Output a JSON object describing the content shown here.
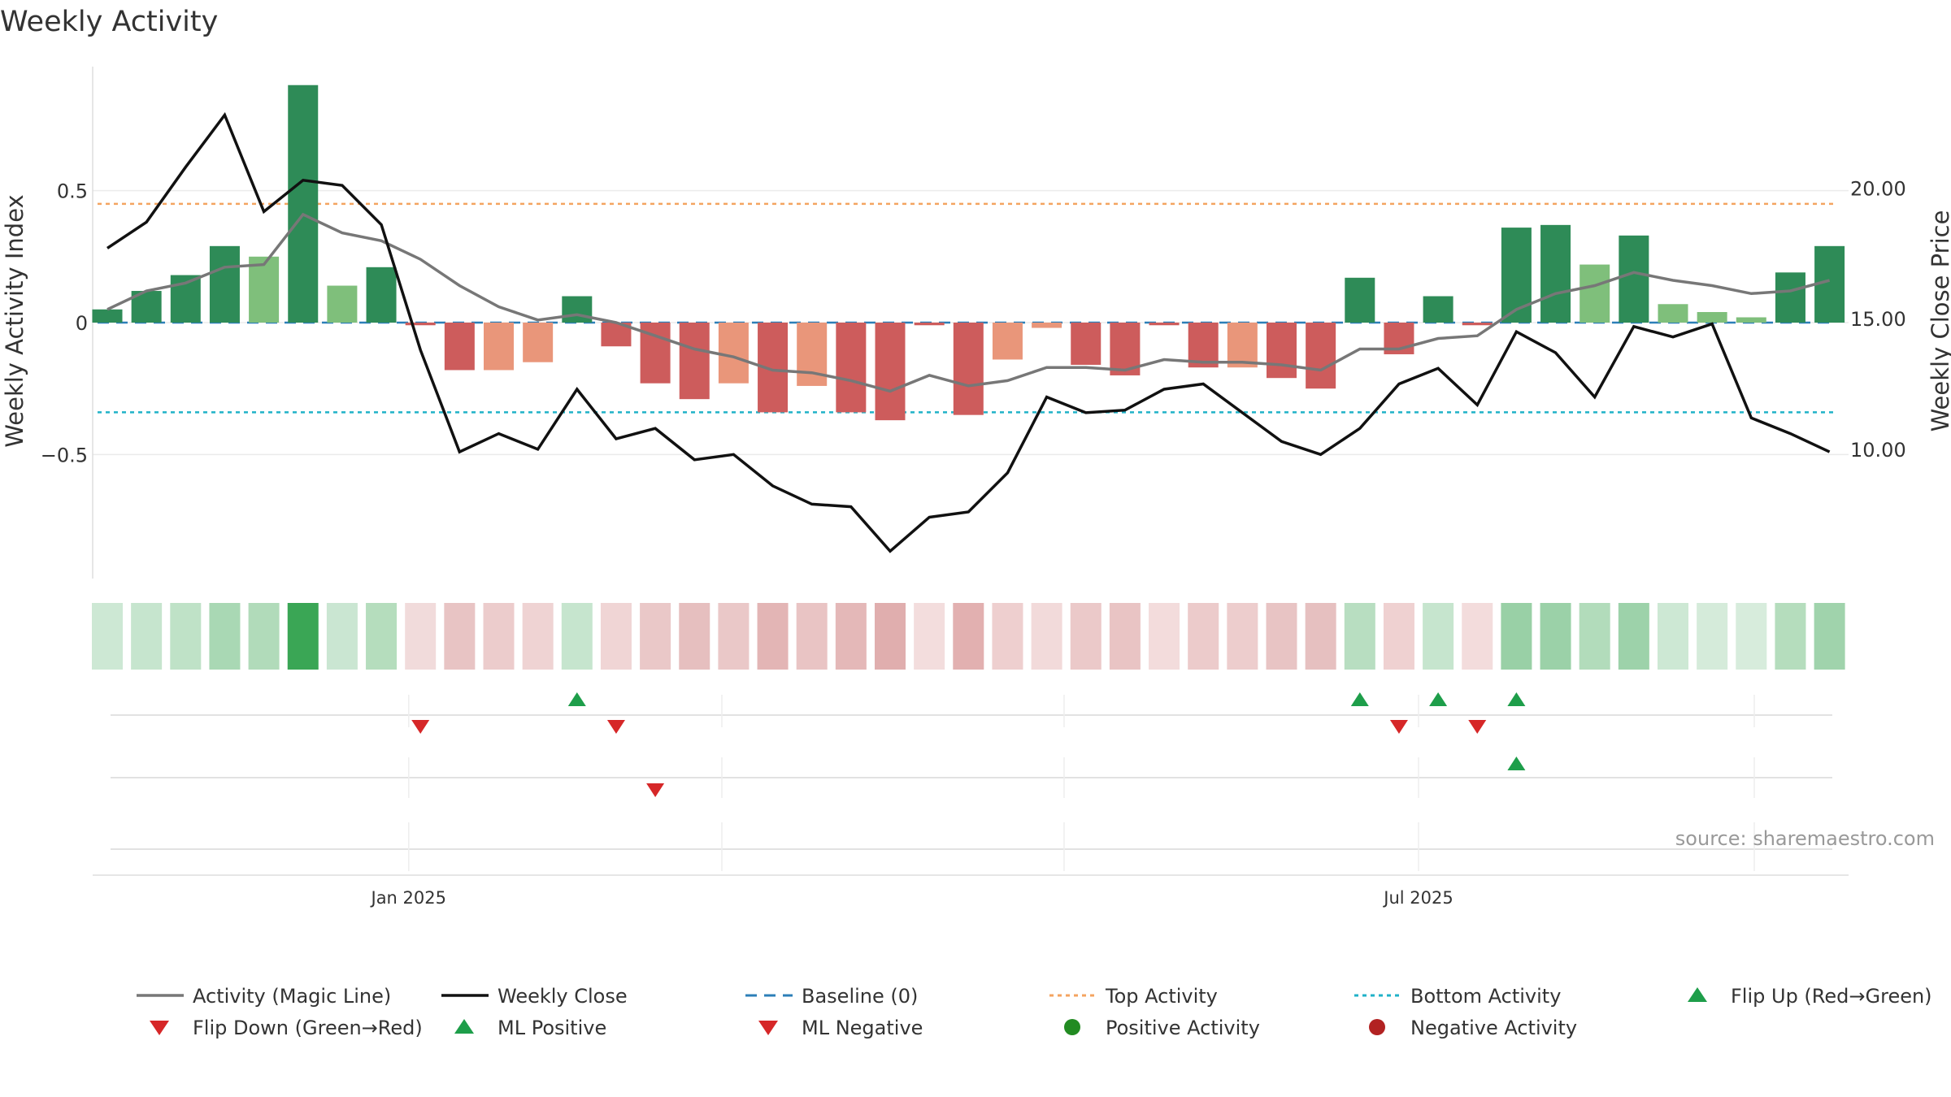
{
  "chart_data": {
    "type": "bar",
    "title": "Weekly Activity",
    "ylabel_left": "Weekly Activity Index",
    "ylabel_right": "Weekly Close Price",
    "y_left_ticks": [
      0.5,
      0,
      -0.5
    ],
    "y_left_tick_labels": [
      "0.5",
      "0",
      "−0.5"
    ],
    "y_left_range": [
      -0.97,
      0.97
    ],
    "y_right_ticks": [
      20,
      15,
      10
    ],
    "y_right_tick_labels": [
      "20.00",
      "15.00",
      "10.00"
    ],
    "y_right_range": [
      5.05,
      24.65
    ],
    "date_ticks": [
      {
        "label": "Jan 2025",
        "week": 7.7
      },
      {
        "label": "Jul 2025",
        "week": 33.5
      }
    ],
    "weeks": 45,
    "activity_values": [
      0.05,
      0.12,
      0.18,
      0.29,
      0.25,
      0.9,
      0.14,
      0.21,
      -0.01,
      -0.18,
      -0.18,
      -0.15,
      0.1,
      -0.09,
      -0.23,
      -0.29,
      -0.23,
      -0.34,
      -0.24,
      -0.34,
      -0.37,
      -0.01,
      -0.35,
      -0.14,
      -0.02,
      -0.16,
      -0.2,
      -0.01,
      -0.17,
      -0.17,
      -0.21,
      -0.25,
      0.17,
      -0.12,
      0.1,
      -0.01,
      0.36,
      0.37,
      0.22,
      0.33,
      0.07,
      0.04,
      0.02,
      0.19,
      0.29
    ],
    "bar_colors": [
      "#2e8b57",
      "#2e8b57",
      "#2e8b57",
      "#2e8b57",
      "#7fbf7b",
      "#2e8b57",
      "#7fbf7b",
      "#2e8b57",
      "#cd5c5c",
      "#cd5c5c",
      "#e9967a",
      "#e9967a",
      "#2e8b57",
      "#cd5c5c",
      "#cd5c5c",
      "#cd5c5c",
      "#e9967a",
      "#cd5c5c",
      "#e9967a",
      "#cd5c5c",
      "#cd5c5c",
      "#cd5c5c",
      "#cd5c5c",
      "#e9967a",
      "#e9967a",
      "#cd5c5c",
      "#cd5c5c",
      "#cd5c5c",
      "#cd5c5c",
      "#e9967a",
      "#cd5c5c",
      "#cd5c5c",
      "#2e8b57",
      "#cd5c5c",
      "#2e8b57",
      "#cd5c5c",
      "#2e8b57",
      "#2e8b57",
      "#7fbf7b",
      "#2e8b57",
      "#7fbf7b",
      "#7fbf7b",
      "#7fbf7b",
      "#2e8b57",
      "#2e8b57"
    ],
    "magic_line": [
      0.05,
      0.12,
      0.15,
      0.21,
      0.22,
      0.41,
      0.34,
      0.31,
      0.24,
      0.14,
      0.06,
      0.01,
      0.03,
      0.0,
      -0.05,
      -0.1,
      -0.13,
      -0.18,
      -0.19,
      -0.22,
      -0.26,
      -0.2,
      -0.24,
      -0.22,
      -0.17,
      -0.17,
      -0.18,
      -0.14,
      -0.15,
      -0.15,
      -0.16,
      -0.18,
      -0.1,
      -0.1,
      -0.06,
      -0.05,
      0.05,
      0.11,
      0.14,
      0.19,
      0.16,
      0.14,
      0.11,
      0.12,
      0.16
    ],
    "weekly_close": [
      17.7,
      18.7,
      20.8,
      22.8,
      19.1,
      20.3,
      20.1,
      18.6,
      13.8,
      9.9,
      10.6,
      10.0,
      12.3,
      10.4,
      10.8,
      9.6,
      9.8,
      8.6,
      7.9,
      7.8,
      6.1,
      7.4,
      7.6,
      9.1,
      12.0,
      11.4,
      11.5,
      12.3,
      12.5,
      11.4,
      10.3,
      9.8,
      10.8,
      12.5,
      13.1,
      11.7,
      14.5,
      13.7,
      12.0,
      14.7,
      14.3,
      14.8,
      11.2,
      10.6,
      9.9
    ],
    "baseline": 0,
    "top_activity": 0.45,
    "bottom_activity": -0.34,
    "heatstrip_colors": [
      "#cde8d4",
      "#c6e5ce",
      "#bfe2c7",
      "#a9d8b4",
      "#b1dbba",
      "#3aa655",
      "#cae6d2",
      "#b5ddbd",
      "#f1dbdb",
      "#e8c4c4",
      "#eccccc",
      "#efd3d3",
      "#c6e5ce",
      "#f0d5d5",
      "#eac8c8",
      "#e6bfbf",
      "#eac8c8",
      "#e3b5b5",
      "#e9c4c4",
      "#e4b8b8",
      "#e0aeae",
      "#f3dddd",
      "#e2b0b0",
      "#eecfcf",
      "#f2dada",
      "#ebc9c9",
      "#e9c4c4",
      "#f3dcdc",
      "#eccbcb",
      "#edcdcd",
      "#e8c4c4",
      "#e6c0c0",
      "#b8dec1",
      "#efd1d1",
      "#c6e5ce",
      "#f3dcdc",
      "#99d0a6",
      "#9bd1a8",
      "#b2dcbb",
      "#9dd2aa",
      "#cde8d4",
      "#d5ebda",
      "#d7ecdc",
      "#b5ddbd",
      "#a0d3ac"
    ],
    "flip_up_weeks": [
      12,
      32,
      34,
      36
    ],
    "flip_down_weeks": [
      8,
      13,
      33,
      35
    ],
    "ml_positive_weeks": [
      36
    ],
    "ml_negative_weeks": [
      14
    ],
    "source": "source: sharemaestro.com",
    "legend": [
      {
        "label": "Activity (Magic Line)",
        "symbol": "line",
        "color": "#777777"
      },
      {
        "label": "Weekly Close",
        "symbol": "line",
        "color": "#111111"
      },
      {
        "label": "Baseline (0)",
        "symbol": "dashed",
        "color": "#2c7fb8"
      },
      {
        "label": "Top Activity",
        "symbol": "dotted",
        "color": "#f4a460"
      },
      {
        "label": "Bottom Activity",
        "symbol": "dotted",
        "color": "#20b2c8"
      },
      {
        "label": "Flip Up (Red→Green)",
        "symbol": "triangle-up",
        "color": "#1e9e4a"
      },
      {
        "label": "Flip Down (Green→Red)",
        "symbol": "triangle-down",
        "color": "#d62728"
      },
      {
        "label": "ML Positive",
        "symbol": "triangle-up",
        "color": "#1e9e4a"
      },
      {
        "label": "ML Negative",
        "symbol": "triangle-down",
        "color": "#d62728"
      },
      {
        "label": "Positive Activity",
        "symbol": "circle",
        "color": "#228b22"
      },
      {
        "label": "Negative Activity",
        "symbol": "circle",
        "color": "#b22222"
      }
    ]
  }
}
